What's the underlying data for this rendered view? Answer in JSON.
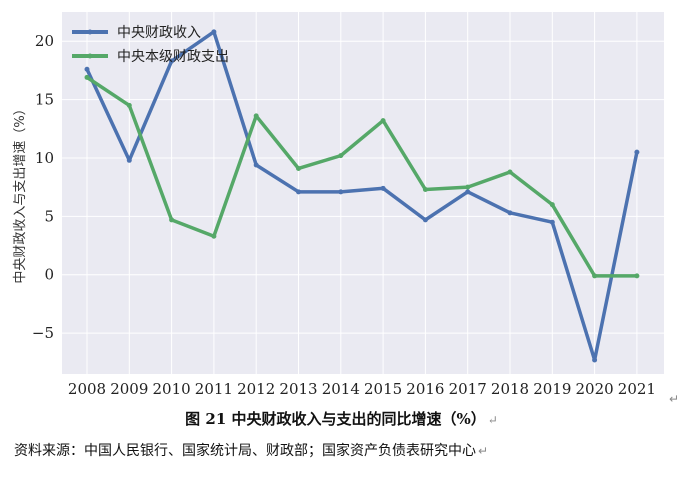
{
  "chart_data": {
    "type": "line",
    "categories": [
      "2008",
      "2009",
      "2010",
      "2011",
      "2012",
      "2013",
      "2014",
      "2015",
      "2016",
      "2017",
      "2018",
      "2019",
      "2020",
      "2021"
    ],
    "series": [
      {
        "name": "中央财政收入",
        "color": "#4c72b0",
        "values": [
          17.6,
          9.8,
          18.3,
          20.8,
          9.4,
          7.1,
          7.1,
          7.4,
          4.7,
          7.1,
          5.3,
          4.5,
          -7.3,
          10.5
        ]
      },
      {
        "name": "中央本级财政支出",
        "color": "#55a868",
        "values": [
          16.9,
          14.5,
          4.7,
          3.3,
          13.6,
          9.1,
          10.2,
          13.2,
          7.3,
          7.5,
          8.8,
          6.0,
          -0.1,
          -0.1
        ]
      }
    ],
    "ylabel": "中央财政收入与支出增速（%）",
    "yticks": [
      -5,
      0,
      5,
      10,
      15,
      20
    ],
    "ylim": [
      -8.5,
      22.5
    ],
    "grid": true,
    "legend": "top-left",
    "background": "#eaeaf2"
  },
  "caption": "图 21  中央财政收入与支出的同比增速（%）",
  "source": "资料来源：中国人民银行、国家统计局、财政部；国家资产负债表研究中心",
  "return_mark": "↵"
}
